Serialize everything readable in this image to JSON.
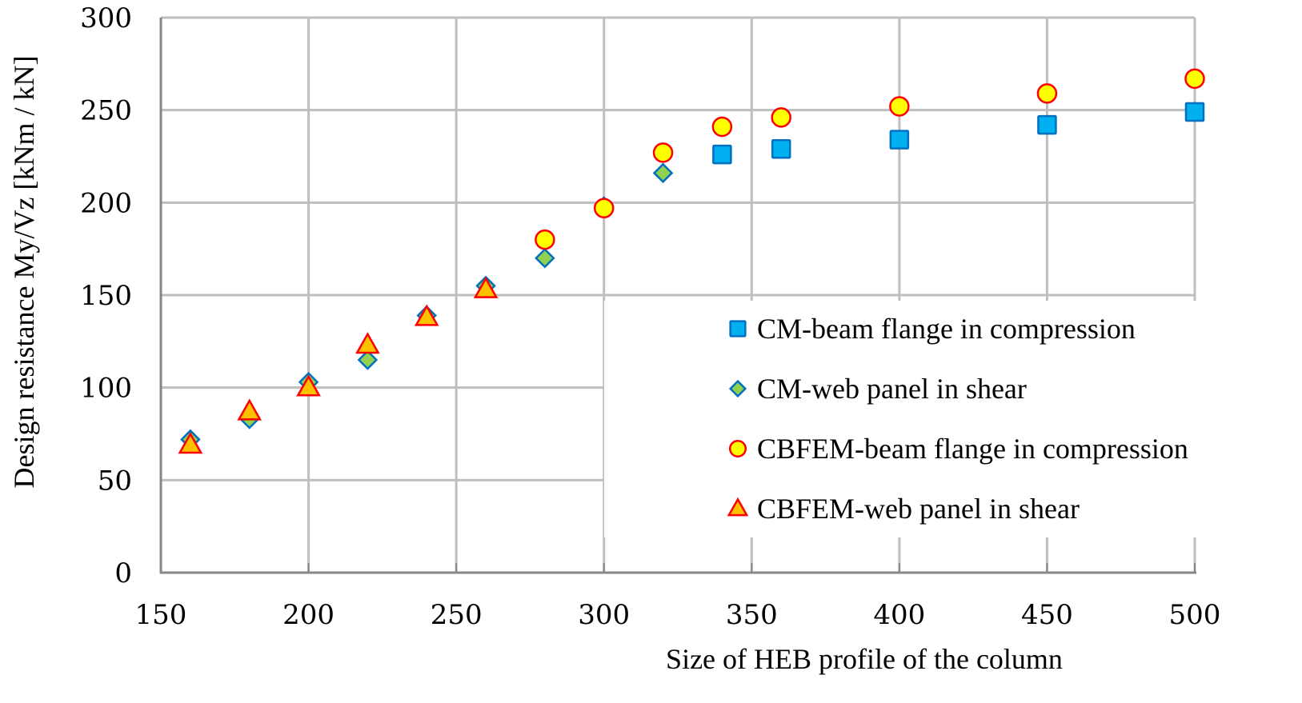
{
  "chart_data": {
    "type": "scatter",
    "title": "",
    "xlabel": "Size of HEB profile of the column",
    "ylabel": "Design resistance My/Vz [kNm / kN]",
    "xlim": [
      150,
      500
    ],
    "ylim": [
      0,
      300
    ],
    "xticks": [
      150,
      200,
      250,
      300,
      350,
      400,
      450,
      500
    ],
    "yticks": [
      0,
      50,
      100,
      150,
      200,
      250,
      300
    ],
    "grid": true,
    "legend_position": "bottom-right",
    "series": [
      {
        "name": "CM-beam flange in compression",
        "marker": "square",
        "fill": "#00b0f0",
        "stroke": "#0070c0",
        "x": [
          340,
          360,
          400,
          450,
          500
        ],
        "y": [
          226,
          229,
          234,
          242,
          249
        ]
      },
      {
        "name": "CM-web panel in shear",
        "marker": "diamond",
        "fill": "#92d050",
        "stroke": "#0070c0",
        "x": [
          160,
          180,
          200,
          220,
          240,
          260,
          280,
          300,
          320
        ],
        "y": [
          72,
          83,
          103,
          115,
          139,
          155,
          170,
          198,
          216
        ]
      },
      {
        "name": "CBFEM-beam flange in compression",
        "marker": "circle",
        "fill": "#ffff00",
        "stroke": "#ff0000",
        "x": [
          280,
          300,
          320,
          340,
          360,
          400,
          450,
          500
        ],
        "y": [
          180,
          197,
          227,
          241,
          246,
          252,
          259,
          267
        ]
      },
      {
        "name": "CBFEM-web panel in shear",
        "marker": "triangle",
        "fill": "#ffc000",
        "stroke": "#ff0000",
        "x": [
          160,
          180,
          200,
          220,
          240,
          260
        ],
        "y": [
          69,
          87,
          100,
          123,
          138,
          153
        ]
      }
    ]
  }
}
